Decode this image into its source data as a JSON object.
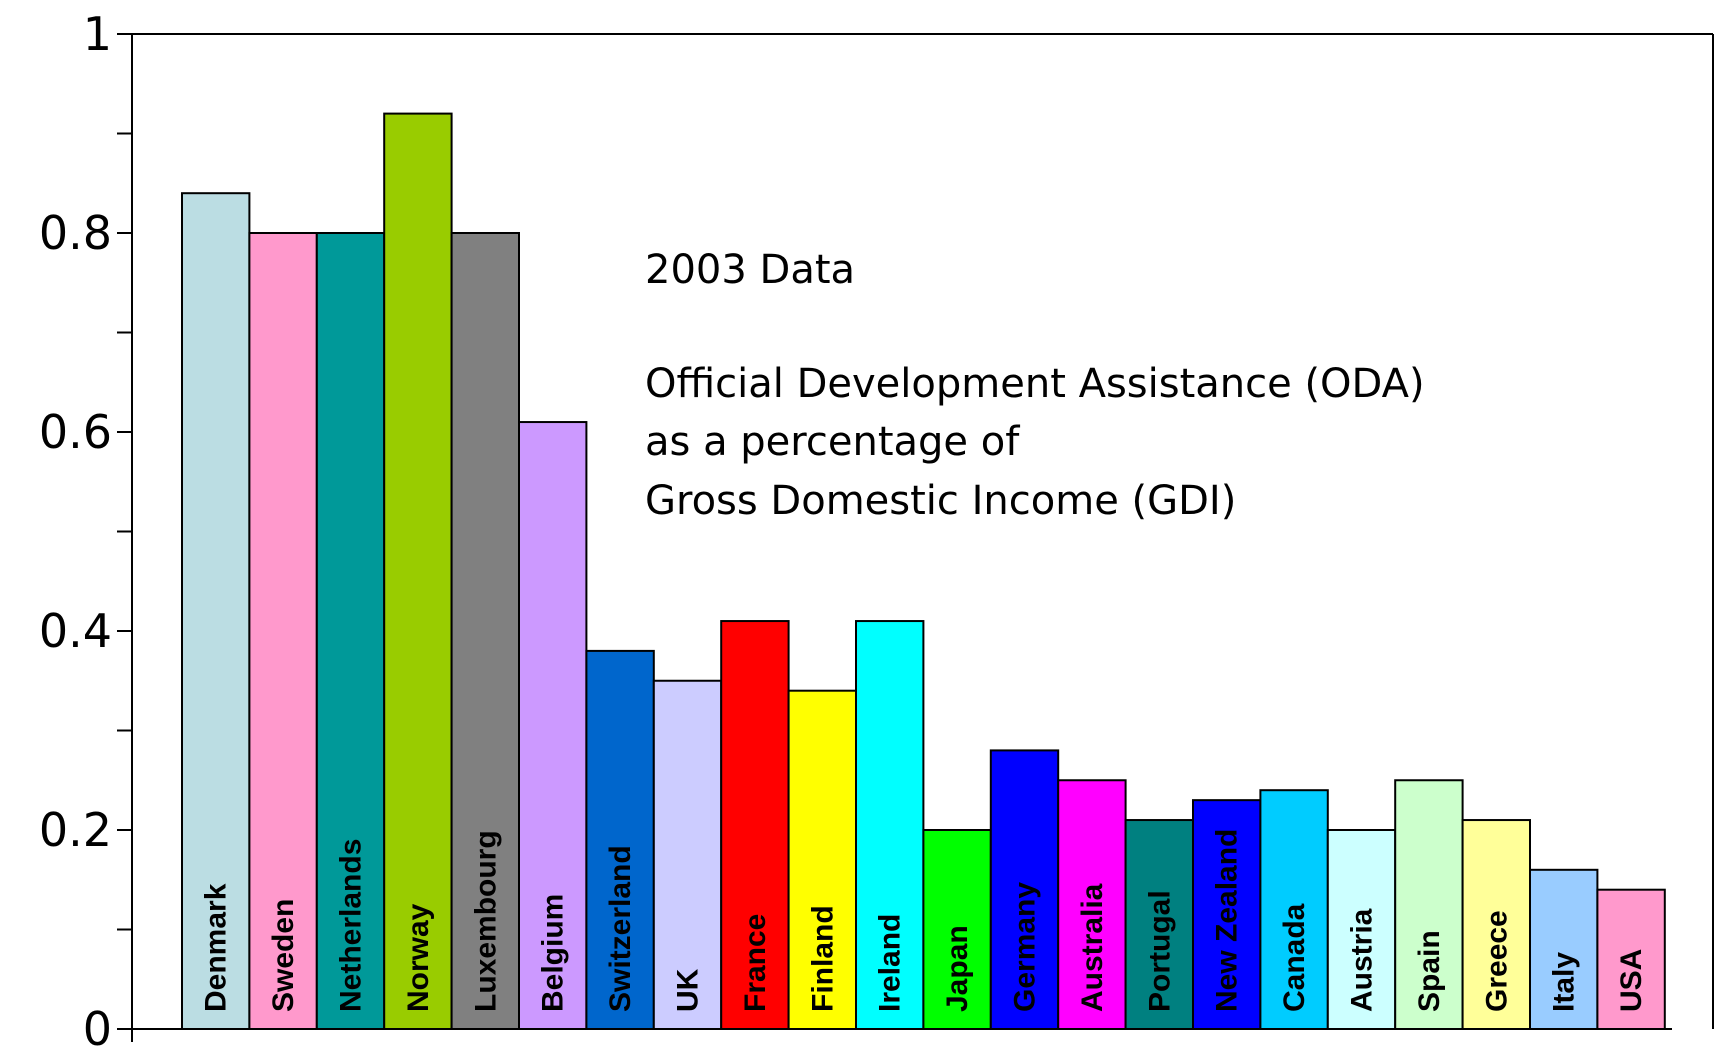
{
  "chart_data": {
    "type": "bar",
    "title": "",
    "xlabel": "",
    "ylabel": "",
    "ylim": [
      0,
      1
    ],
    "yticks": [
      0,
      0.2,
      0.4,
      0.6,
      0.8,
      1
    ],
    "ytick_labels": [
      "0",
      "0.2",
      "0.4",
      "0.6",
      "0.8",
      "1"
    ],
    "grid": false,
    "legend": "none",
    "annotation": {
      "line1": "2003 Data",
      "line2": "Official Development Assistance (ODA)",
      "line3": "as a percentage of",
      "line4": "Gross Domestic Income (GDI)"
    },
    "categories": [
      "Denmark",
      "Sweden",
      "Netherlands",
      "Norway",
      "Luxembourg",
      "Belgium",
      "Switzerland",
      "UK",
      "France",
      "Finland",
      "Ireland",
      "Japan",
      "Germany",
      "Australia",
      "Portugal",
      "New Zealand",
      "Canada",
      "Austria",
      "Spain",
      "Greece",
      "Italy",
      "USA"
    ],
    "values": [
      0.84,
      0.8,
      0.8,
      0.92,
      0.8,
      0.61,
      0.38,
      0.35,
      0.41,
      0.34,
      0.41,
      0.2,
      0.28,
      0.25,
      0.21,
      0.23,
      0.24,
      0.2,
      0.25,
      0.21,
      0.16,
      0.14
    ],
    "colors": [
      "#BBDDE3",
      "#FF99CC",
      "#009999",
      "#99CC00",
      "#808080",
      "#CC99FF",
      "#0066CC",
      "#CCCCFF",
      "#FF0000",
      "#FFFF00",
      "#00FFFF",
      "#00FF00",
      "#0000FF",
      "#FF00FF",
      "#008080",
      "#0000FF",
      "#00CCFF",
      "#CCFFFF",
      "#CCFFCC",
      "#FFFF99",
      "#99CCFF",
      "#FF99CC"
    ],
    "label_colors": [
      "#000000",
      "#000000",
      "#000000",
      "#000000",
      "#000000",
      "#000000",
      "#000000",
      "#000000",
      "#000000",
      "#000000",
      "#000000",
      "#000000",
      "#000000",
      "#000000",
      "#000000",
      "#000000",
      "#000000",
      "#000000",
      "#000000",
      "#000000",
      "#000000",
      "#000000"
    ]
  }
}
